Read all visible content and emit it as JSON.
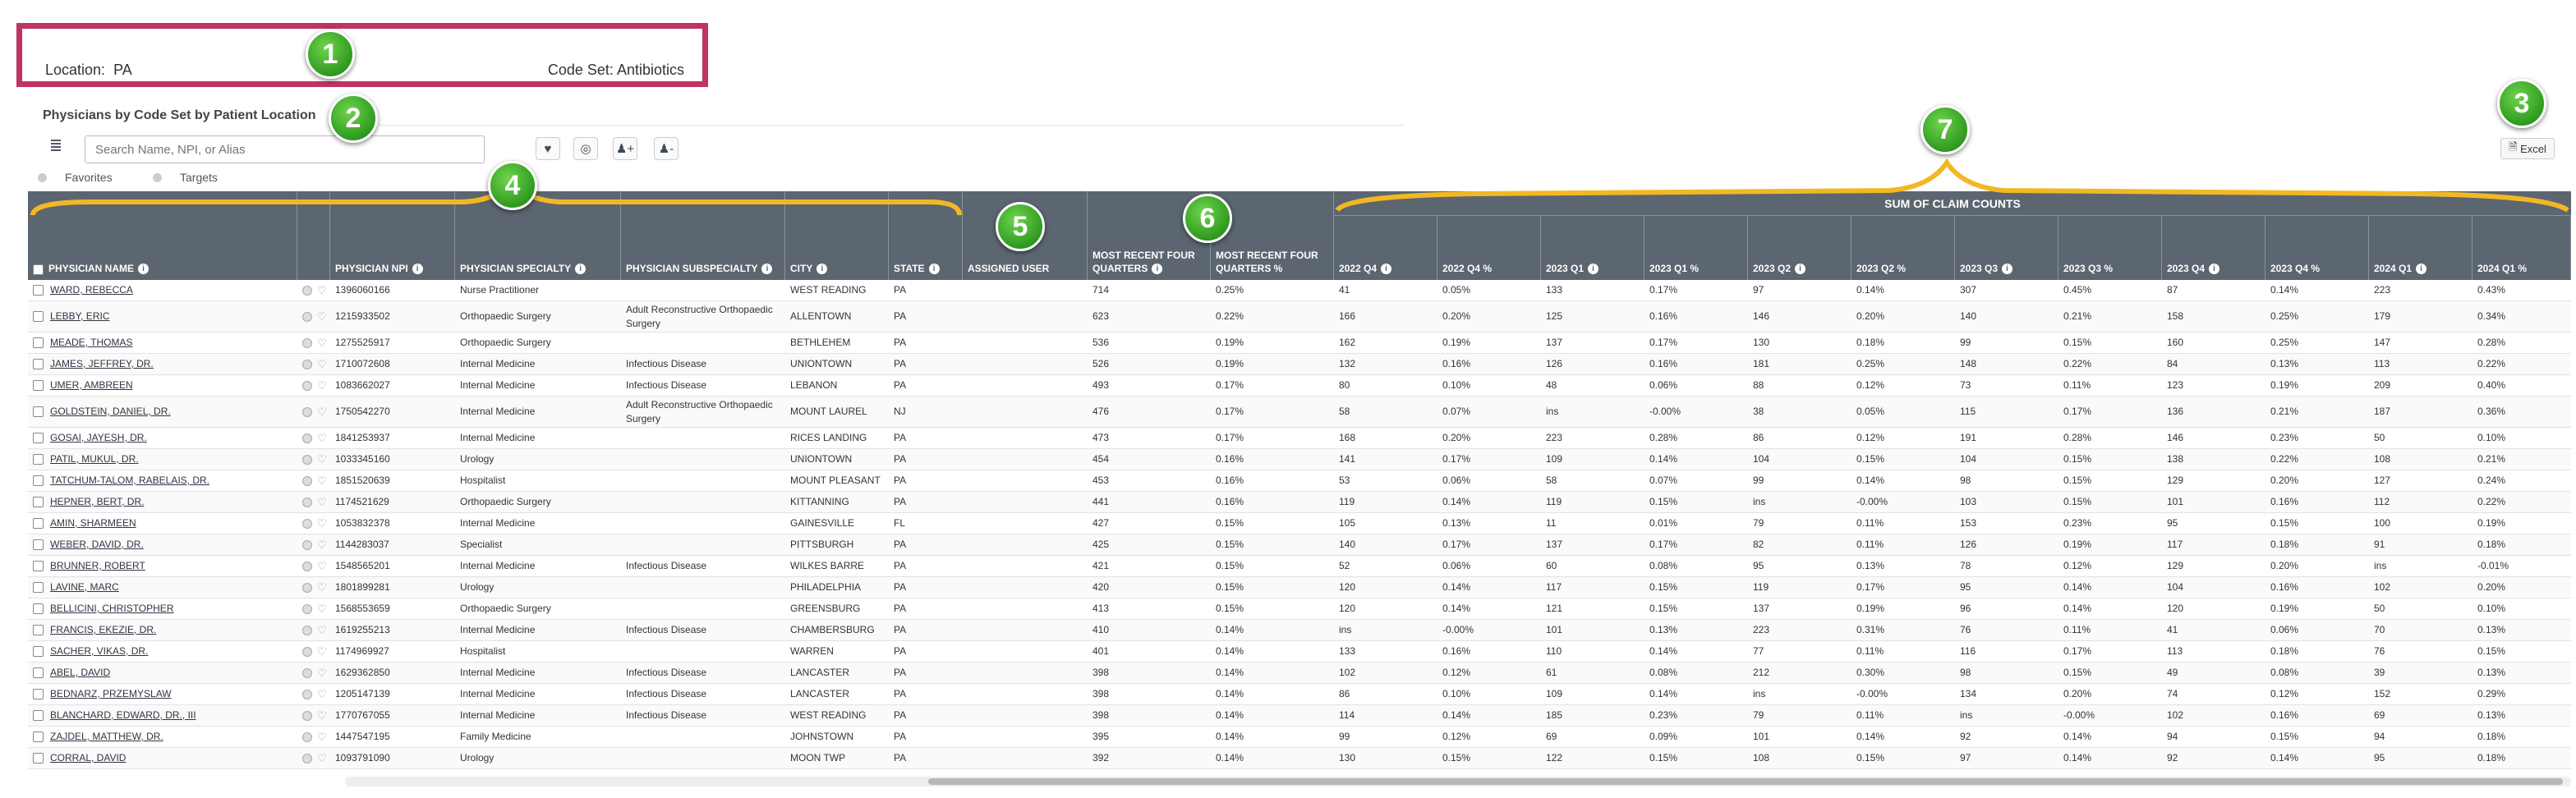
{
  "location_label": "Location:",
  "location_value": "PA",
  "codeset_label": "Code Set:",
  "codeset_value": "Antibiotics",
  "title": "Physicians by Code Set by Patient Location",
  "search_placeholder": "Search Name, NPI, or Alias",
  "radio_favorites": "Favorites",
  "radio_targets": "Targets",
  "excel_label": "Excel",
  "sum_header": "SUM OF CLAIM COUNTS",
  "badges": [
    "1",
    "2",
    "3",
    "4",
    "5",
    "6",
    "7"
  ],
  "columns": [
    "PHYSICIAN NAME",
    "PHYSICIAN NPI",
    "PHYSICIAN SPECIALTY",
    "PHYSICIAN SUBSPECIALTY",
    "CITY",
    "STATE",
    "ASSIGNED USER",
    "MOST RECENT FOUR QUARTERS",
    "MOST RECENT FOUR QUARTERS %",
    "2022 Q4",
    "2022 Q4 %",
    "2023 Q1",
    "2023 Q1 %",
    "2023 Q2",
    "2023 Q2 %",
    "2023 Q3",
    "2023 Q3 %",
    "2023 Q4",
    "2023 Q4 %",
    "2024 Q1",
    "2024 Q1 %"
  ],
  "rows": [
    [
      "WARD, REBECCA",
      "1396060166",
      "Nurse Practitioner",
      "",
      "WEST READING",
      "PA",
      "",
      "714",
      "0.25%",
      "41",
      "0.05%",
      "133",
      "0.17%",
      "97",
      "0.14%",
      "307",
      "0.45%",
      "87",
      "0.14%",
      "223",
      "0.43%"
    ],
    [
      "LEBBY, ERIC",
      "1215933502",
      "Orthopaedic Surgery",
      "Adult Reconstructive Orthopaedic Surgery",
      "ALLENTOWN",
      "PA",
      "",
      "623",
      "0.22%",
      "166",
      "0.20%",
      "125",
      "0.16%",
      "146",
      "0.20%",
      "140",
      "0.21%",
      "158",
      "0.25%",
      "179",
      "0.34%"
    ],
    [
      "MEADE, THOMAS",
      "1275525917",
      "Orthopaedic Surgery",
      "",
      "BETHLEHEM",
      "PA",
      "",
      "536",
      "0.19%",
      "162",
      "0.19%",
      "137",
      "0.17%",
      "130",
      "0.18%",
      "99",
      "0.15%",
      "160",
      "0.25%",
      "147",
      "0.28%"
    ],
    [
      "JAMES, JEFFREY, DR.",
      "1710072608",
      "Internal Medicine",
      "Infectious Disease",
      "UNIONTOWN",
      "PA",
      "",
      "526",
      "0.19%",
      "132",
      "0.16%",
      "126",
      "0.16%",
      "181",
      "0.25%",
      "148",
      "0.22%",
      "84",
      "0.13%",
      "113",
      "0.22%"
    ],
    [
      "UMER, AMBREEN",
      "1083662027",
      "Internal Medicine",
      "Infectious Disease",
      "LEBANON",
      "PA",
      "",
      "493",
      "0.17%",
      "80",
      "0.10%",
      "48",
      "0.06%",
      "88",
      "0.12%",
      "73",
      "0.11%",
      "123",
      "0.19%",
      "209",
      "0.40%"
    ],
    [
      "GOLDSTEIN, DANIEL, DR.",
      "1750542270",
      "Internal Medicine",
      "Adult Reconstructive Orthopaedic Surgery",
      "MOUNT LAUREL",
      "NJ",
      "",
      "476",
      "0.17%",
      "58",
      "0.07%",
      "ins",
      "-0.00%",
      "38",
      "0.05%",
      "115",
      "0.17%",
      "136",
      "0.21%",
      "187",
      "0.36%"
    ],
    [
      "GOSAI, JAYESH, DR.",
      "1841253937",
      "Internal Medicine",
      "",
      "RICES LANDING",
      "PA",
      "",
      "473",
      "0.17%",
      "168",
      "0.20%",
      "223",
      "0.28%",
      "86",
      "0.12%",
      "191",
      "0.28%",
      "146",
      "0.23%",
      "50",
      "0.10%"
    ],
    [
      "PATIL, MUKUL, DR.",
      "1033345160",
      "Urology",
      "",
      "UNIONTOWN",
      "PA",
      "",
      "454",
      "0.16%",
      "141",
      "0.17%",
      "109",
      "0.14%",
      "104",
      "0.15%",
      "104",
      "0.15%",
      "138",
      "0.22%",
      "108",
      "0.21%"
    ],
    [
      "TATCHUM-TALOM, RABELAIS, DR.",
      "1851520639",
      "Hospitalist",
      "",
      "MOUNT PLEASANT",
      "PA",
      "",
      "453",
      "0.16%",
      "53",
      "0.06%",
      "58",
      "0.07%",
      "99",
      "0.14%",
      "98",
      "0.15%",
      "129",
      "0.20%",
      "127",
      "0.24%"
    ],
    [
      "HEPNER, BERT, DR.",
      "1174521629",
      "Orthopaedic Surgery",
      "",
      "KITTANNING",
      "PA",
      "",
      "441",
      "0.16%",
      "119",
      "0.14%",
      "119",
      "0.15%",
      "ins",
      "-0.00%",
      "103",
      "0.15%",
      "101",
      "0.16%",
      "112",
      "0.22%"
    ],
    [
      "AMIN, SHARMEEN",
      "1053832378",
      "Internal Medicine",
      "",
      "GAINESVILLE",
      "FL",
      "",
      "427",
      "0.15%",
      "105",
      "0.13%",
      "11",
      "0.01%",
      "79",
      "0.11%",
      "153",
      "0.23%",
      "95",
      "0.15%",
      "100",
      "0.19%"
    ],
    [
      "WEBER, DAVID, DR.",
      "1144283037",
      "Specialist",
      "",
      "PITTSBURGH",
      "PA",
      "",
      "425",
      "0.15%",
      "140",
      "0.17%",
      "137",
      "0.17%",
      "82",
      "0.11%",
      "126",
      "0.19%",
      "117",
      "0.18%",
      "91",
      "0.18%"
    ],
    [
      "BRUNNER, ROBERT",
      "1548565201",
      "Internal Medicine",
      "Infectious Disease",
      "WILKES BARRE",
      "PA",
      "",
      "421",
      "0.15%",
      "52",
      "0.06%",
      "60",
      "0.08%",
      "95",
      "0.13%",
      "78",
      "0.12%",
      "129",
      "0.20%",
      "ins",
      "-0.01%"
    ],
    [
      "LAVINE, MARC",
      "1801899281",
      "Urology",
      "",
      "PHILADELPHIA",
      "PA",
      "",
      "420",
      "0.15%",
      "120",
      "0.14%",
      "117",
      "0.15%",
      "119",
      "0.17%",
      "95",
      "0.14%",
      "104",
      "0.16%",
      "102",
      "0.20%"
    ],
    [
      "BELLICINI, CHRISTOPHER",
      "1568553659",
      "Orthopaedic Surgery",
      "",
      "GREENSBURG",
      "PA",
      "",
      "413",
      "0.15%",
      "120",
      "0.14%",
      "121",
      "0.15%",
      "137",
      "0.19%",
      "96",
      "0.14%",
      "120",
      "0.19%",
      "50",
      "0.10%"
    ],
    [
      "FRANCIS, EKEZIE, DR.",
      "1619255213",
      "Internal Medicine",
      "Infectious Disease",
      "CHAMBERSBURG",
      "PA",
      "",
      "410",
      "0.14%",
      "ins",
      "-0.00%",
      "101",
      "0.13%",
      "223",
      "0.31%",
      "76",
      "0.11%",
      "41",
      "0.06%",
      "70",
      "0.13%"
    ],
    [
      "SACHER, VIKAS, DR.",
      "1174969927",
      "Hospitalist",
      "",
      "WARREN",
      "PA",
      "",
      "401",
      "0.14%",
      "133",
      "0.16%",
      "110",
      "0.14%",
      "77",
      "0.11%",
      "116",
      "0.17%",
      "113",
      "0.18%",
      "76",
      "0.15%"
    ],
    [
      "ABEL, DAVID",
      "1629362850",
      "Internal Medicine",
      "Infectious Disease",
      "LANCASTER",
      "PA",
      "",
      "398",
      "0.14%",
      "102",
      "0.12%",
      "61",
      "0.08%",
      "212",
      "0.30%",
      "98",
      "0.15%",
      "49",
      "0.08%",
      "39",
      "0.13%"
    ],
    [
      "BEDNARZ, PRZEMYSLAW",
      "1205147139",
      "Internal Medicine",
      "Infectious Disease",
      "LANCASTER",
      "PA",
      "",
      "398",
      "0.14%",
      "86",
      "0.10%",
      "109",
      "0.14%",
      "ins",
      "-0.00%",
      "134",
      "0.20%",
      "74",
      "0.12%",
      "152",
      "0.29%"
    ],
    [
      "BLANCHARD, EDWARD, DR., III",
      "1770767055",
      "Internal Medicine",
      "Infectious Disease",
      "WEST READING",
      "PA",
      "",
      "398",
      "0.14%",
      "114",
      "0.14%",
      "185",
      "0.23%",
      "79",
      "0.11%",
      "ins",
      "-0.00%",
      "102",
      "0.16%",
      "69",
      "0.13%"
    ],
    [
      "ZAJDEL, MATTHEW, DR.",
      "1447547195",
      "Family Medicine",
      "",
      "JOHNSTOWN",
      "PA",
      "",
      "395",
      "0.14%",
      "99",
      "0.12%",
      "69",
      "0.09%",
      "101",
      "0.14%",
      "92",
      "0.14%",
      "94",
      "0.15%",
      "94",
      "0.18%"
    ],
    [
      "CORRAL, DAVID",
      "1093791090",
      "Urology",
      "",
      "MOON TWP",
      "PA",
      "",
      "392",
      "0.14%",
      "130",
      "0.15%",
      "122",
      "0.15%",
      "108",
      "0.15%",
      "97",
      "0.14%",
      "92",
      "0.14%",
      "95",
      "0.18%"
    ]
  ]
}
